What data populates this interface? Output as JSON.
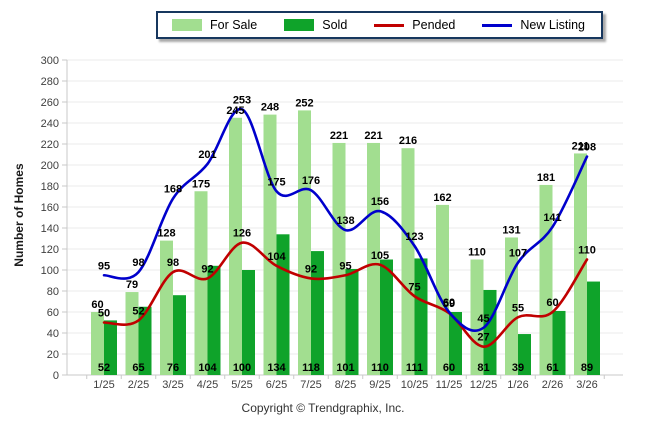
{
  "footer": {
    "copyright": "Copyright © Trendgraphix, Inc."
  },
  "colors": {
    "for_sale": "#A2DE90",
    "sold": "#0FA32A",
    "pended": "#C00000",
    "new_listing": "#0000CC",
    "axis": "#C9C9C9",
    "grid": "#EBEBEB",
    "tick_text": "#404040",
    "legend_border": "#17375E"
  },
  "chart_data": {
    "type": "bar",
    "subtype": "bar+line combo",
    "title": "",
    "xlabel": "",
    "ylabel": "Number of Homes",
    "ylim": [
      0,
      300
    ],
    "ytick_step": 20,
    "grid": true,
    "legend_position": "top",
    "categories": [
      "1/25",
      "2/25",
      "3/25",
      "4/25",
      "5/25",
      "6/25",
      "7/25",
      "8/25",
      "9/25",
      "10/25",
      "11/25",
      "12/25",
      "1/26",
      "2/26",
      "3/26"
    ],
    "series": [
      {
        "name": "For Sale",
        "type": "bar",
        "color": "#A2DE90",
        "values": [
          60,
          79,
          128,
          175,
          245,
          248,
          252,
          221,
          221,
          216,
          162,
          110,
          131,
          181,
          211
        ]
      },
      {
        "name": "Sold",
        "type": "bar",
        "color": "#0FA32A",
        "values": [
          52,
          65,
          76,
          104,
          100,
          134,
          118,
          101,
          110,
          111,
          60,
          81,
          39,
          61,
          89
        ]
      },
      {
        "name": "Pended",
        "type": "line",
        "color": "#C00000",
        "values": [
          50,
          52,
          98,
          92,
          126,
          104,
          92,
          95,
          105,
          75,
          59,
          27,
          55,
          60,
          110
        ]
      },
      {
        "name": "New Listing",
        "type": "line",
        "color": "#0000CC",
        "values": [
          95,
          98,
          168,
          201,
          253,
          175,
          176,
          138,
          156,
          123,
          60,
          45,
          107,
          141,
          208
        ]
      }
    ]
  }
}
